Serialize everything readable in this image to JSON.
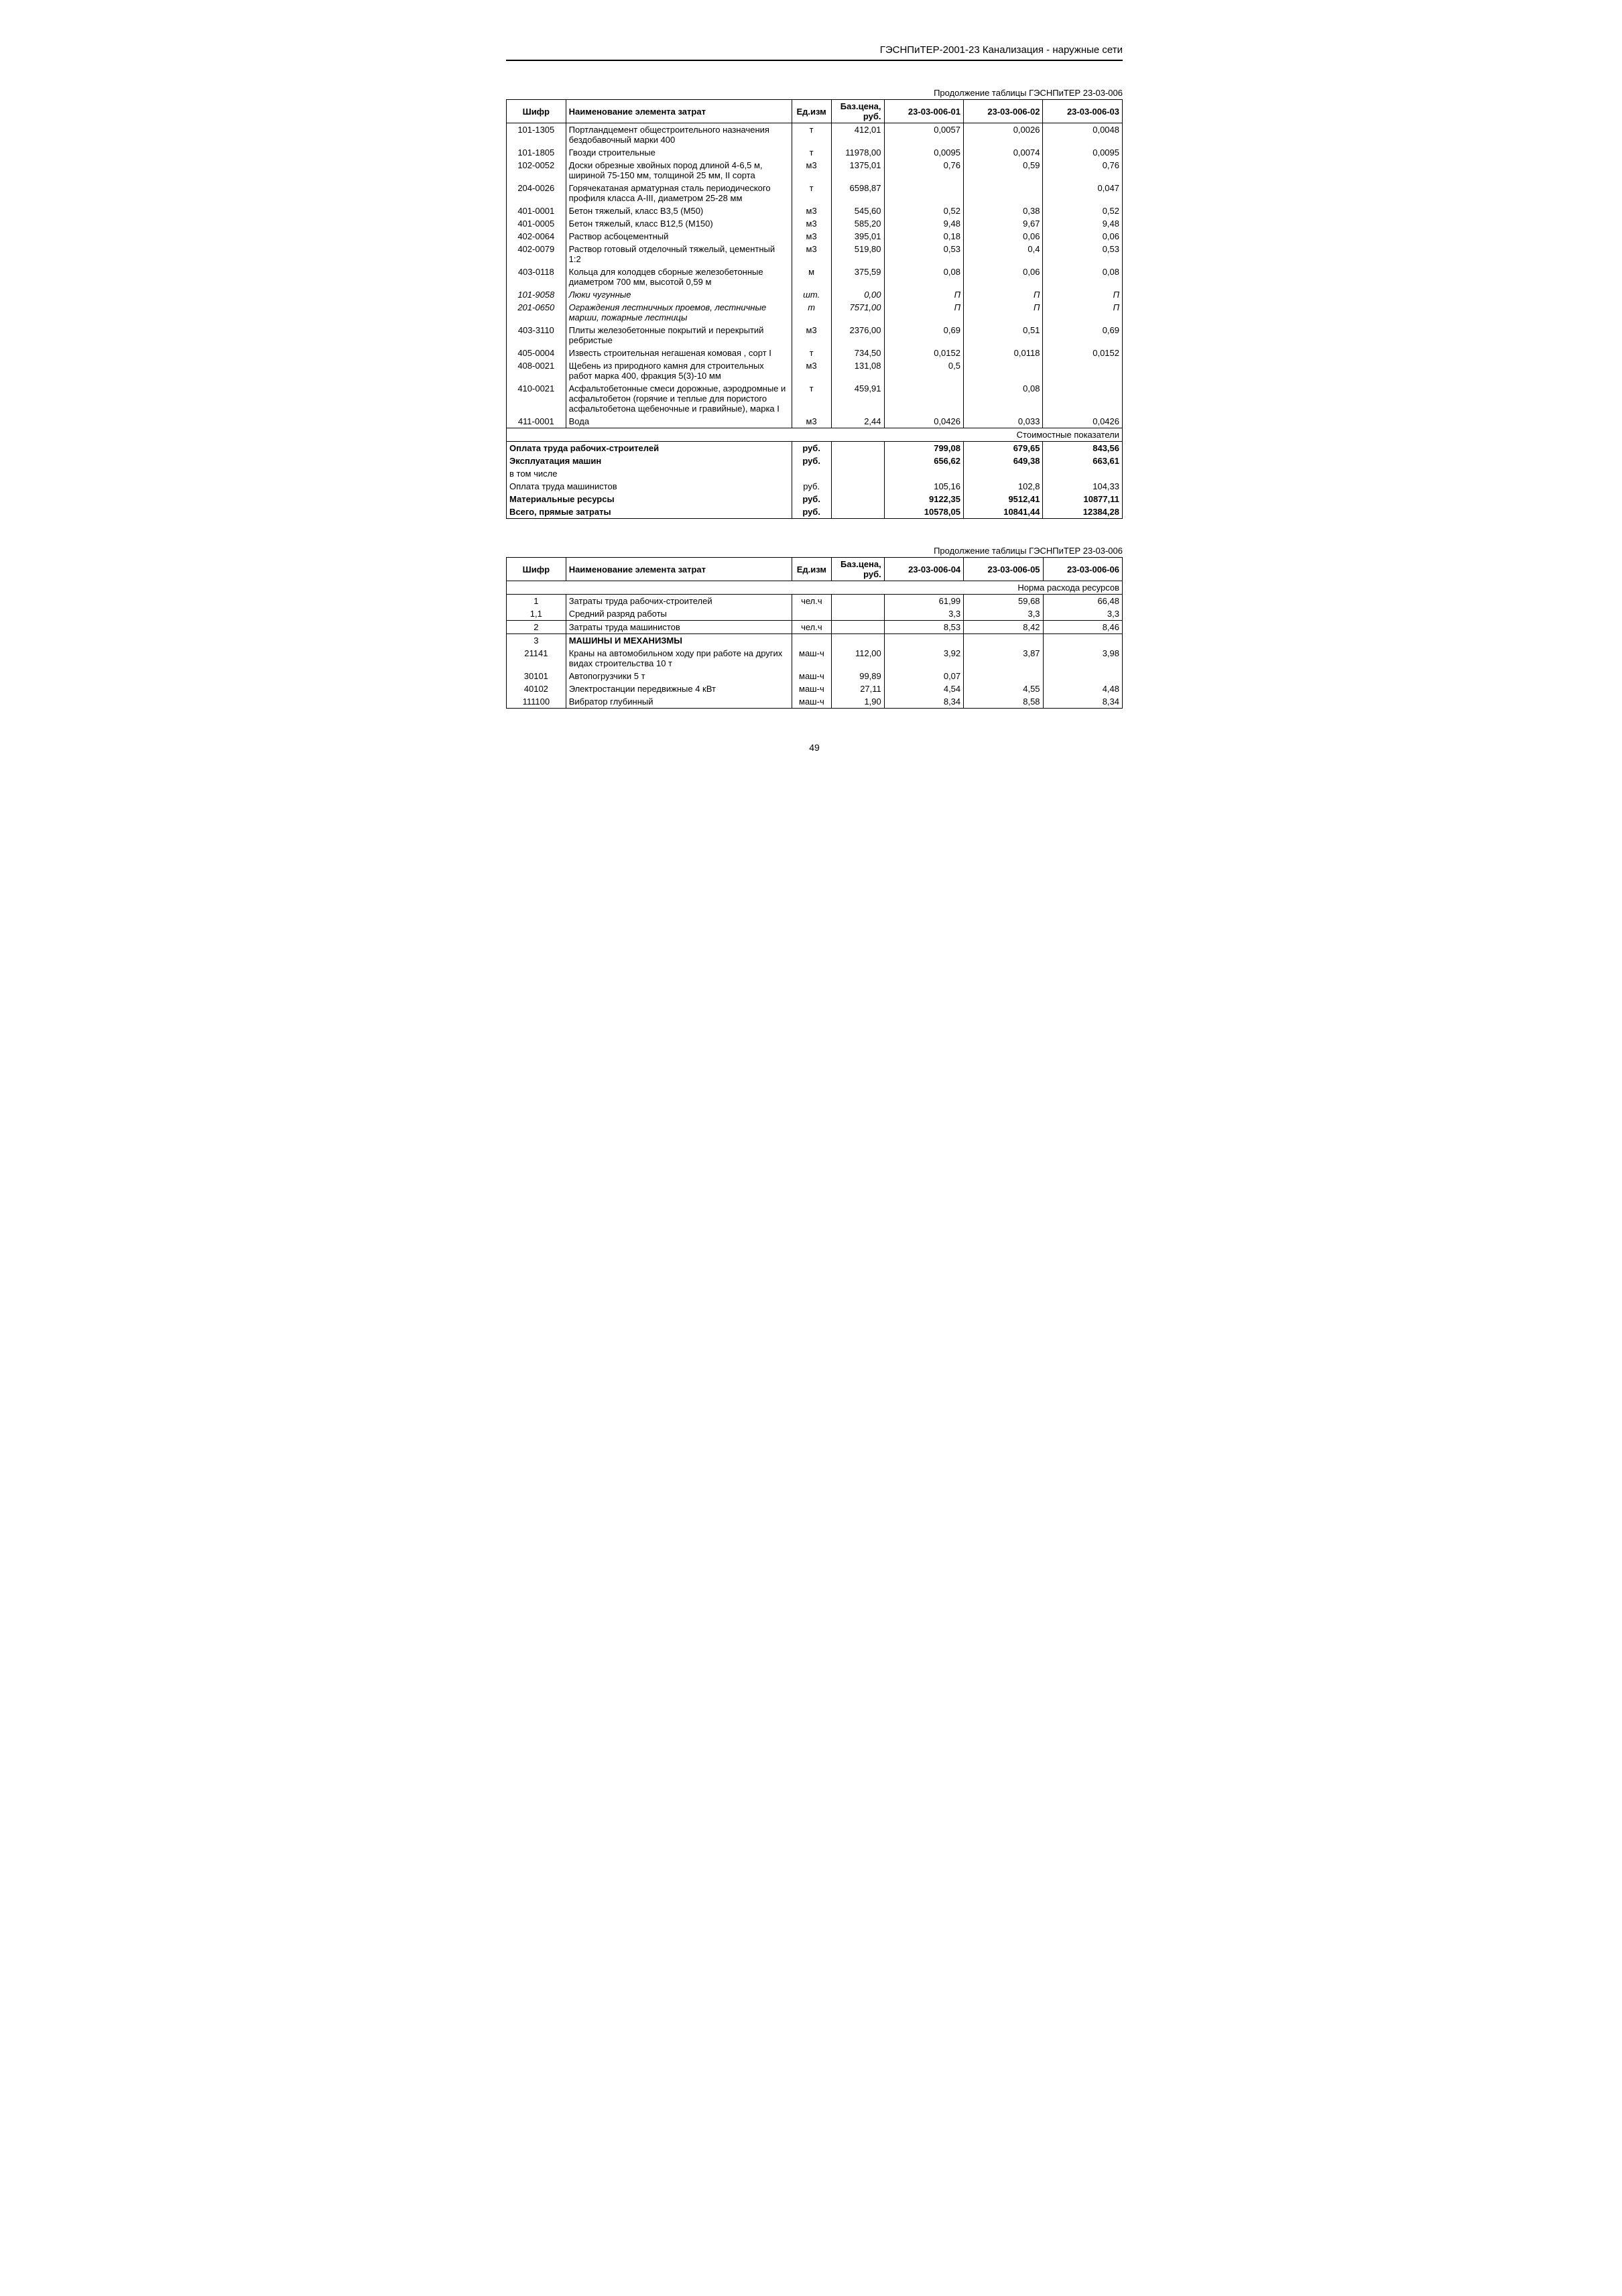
{
  "doc_header": "ГЭСНПиТЕР-2001-23 Канализация - наружные сети",
  "page_number": "49",
  "table1": {
    "caption": "Продолжение таблицы ГЭСНПиТЕР 23-03-006",
    "headers": {
      "code": "Шифр",
      "name": "Наименование элемента затрат",
      "unit": "Ед.изм",
      "price": "Баз.цена, руб.",
      "c1": "23-03-006-01",
      "c2": "23-03-006-02",
      "c3": "23-03-006-03"
    },
    "rows": [
      {
        "code": "101-1305",
        "name": "Портландцемент общестроительного назначения бездобавочный марки 400",
        "unit": "т",
        "price": "412,01",
        "v1": "0,0057",
        "v2": "0,0026",
        "v3": "0,0048"
      },
      {
        "code": "101-1805",
        "name": "Гвозди строительные",
        "unit": "т",
        "price": "11978,00",
        "v1": "0,0095",
        "v2": "0,0074",
        "v3": "0,0095"
      },
      {
        "code": "102-0052",
        "name": "Доски обрезные хвойных пород длиной 4-6,5 м, шириной 75-150 мм, толщиной 25 мм, II сорта",
        "unit": "м3",
        "price": "1375,01",
        "v1": "0,76",
        "v2": "0,59",
        "v3": "0,76"
      },
      {
        "code": "204-0026",
        "name": "Горячекатаная арматурная сталь периодического профиля класса А-III, диаметром 25-28 мм",
        "unit": "т",
        "price": "6598,87",
        "v1": "",
        "v2": "",
        "v3": "0,047"
      },
      {
        "code": "401-0001",
        "name": "Бетон тяжелый, класс В3,5 (М50)",
        "unit": "м3",
        "price": "545,60",
        "v1": "0,52",
        "v2": "0,38",
        "v3": "0,52"
      },
      {
        "code": "401-0005",
        "name": "Бетон тяжелый, класс В12,5 (М150)",
        "unit": "м3",
        "price": "585,20",
        "v1": "9,48",
        "v2": "9,67",
        "v3": "9,48"
      },
      {
        "code": "402-0064",
        "name": "Раствор асбоцементный",
        "unit": "м3",
        "price": "395,01",
        "v1": "0,18",
        "v2": "0,06",
        "v3": "0,06"
      },
      {
        "code": "402-0079",
        "name": "Раствор готовый отделочный тяжелый, цементный 1:2",
        "unit": "м3",
        "price": "519,80",
        "v1": "0,53",
        "v2": "0,4",
        "v3": "0,53"
      },
      {
        "code": "403-0118",
        "name": "Кольца для колодцев сборные железобетонные диаметром 700 мм, высотой 0,59 м",
        "unit": "м",
        "price": "375,59",
        "v1": "0,08",
        "v2": "0,06",
        "v3": "0,08"
      },
      {
        "code": "101-9058",
        "name": "Люки чугунные",
        "unit": "шт.",
        "price": "0,00",
        "v1": "П",
        "v2": "П",
        "v3": "П",
        "italic": true
      },
      {
        "code": "201-0650",
        "name": "Ограждения лестничных проемов, лестничные марши, пожарные лестницы",
        "unit": "т",
        "price": "7571,00",
        "v1": "П",
        "v2": "П",
        "v3": "П",
        "italic": true
      },
      {
        "code": "403-3110",
        "name": "Плиты железобетонные покрытий и перекрытий ребристые",
        "unit": "м3",
        "price": "2376,00",
        "v1": "0,69",
        "v2": "0,51",
        "v3": "0,69"
      },
      {
        "code": "405-0004",
        "name": "Известь строительная негашеная комовая , сорт I",
        "unit": "т",
        "price": "734,50",
        "v1": "0,0152",
        "v2": "0,0118",
        "v3": "0,0152"
      },
      {
        "code": "408-0021",
        "name": "Щебень из природного камня для строительных работ марка 400, фракция 5(3)-10 мм",
        "unit": "м3",
        "price": "131,08",
        "v1": "0,5",
        "v2": "",
        "v3": ""
      },
      {
        "code": "410-0021",
        "name": "Асфальтобетонные смеси дорожные, аэродромные и асфальтобетон (горячие и теплые для пористого асфальтобетона щебеночные и гравийные), марка I",
        "unit": "т",
        "price": "459,91",
        "v1": "",
        "v2": "0,08",
        "v3": ""
      },
      {
        "code": "411-0001",
        "name": "Вода",
        "unit": "м3",
        "price": "2,44",
        "v1": "0,0426",
        "v2": "0,033",
        "v3": "0,0426"
      }
    ],
    "cost_section_label": "Стоимостные показатели",
    "summary": [
      {
        "name": "Оплата труда рабочих-строителей",
        "unit": "руб.",
        "v1": "799,08",
        "v2": "679,65",
        "v3": "843,56",
        "bold": true
      },
      {
        "name": "Эксплуатация машин",
        "unit": "руб.",
        "v1": "656,62",
        "v2": "649,38",
        "v3": "663,61",
        "bold": true
      },
      {
        "name": "в том числе",
        "unit": "",
        "v1": "",
        "v2": "",
        "v3": ""
      },
      {
        "name": "Оплата труда машинистов",
        "unit": "руб.",
        "v1": "105,16",
        "v2": "102,8",
        "v3": "104,33"
      },
      {
        "name": "Материальные ресурсы",
        "unit": "руб.",
        "v1": "9122,35",
        "v2": "9512,41",
        "v3": "10877,11",
        "bold": true
      },
      {
        "name": "Всего, прямые затраты",
        "unit": "руб.",
        "v1": "10578,05",
        "v2": "10841,44",
        "v3": "12384,28",
        "bold": true
      }
    ]
  },
  "table2": {
    "caption": "Продолжение таблицы ГЭСНПиТЕР 23-03-006",
    "headers": {
      "code": "Шифр",
      "name": "Наименование элемента затрат",
      "unit": "Ед.изм",
      "price": "Баз.цена, руб.",
      "c1": "23-03-006-04",
      "c2": "23-03-006-05",
      "c3": "23-03-006-06"
    },
    "norm_label": "Норма расхода ресурсов",
    "rows": [
      {
        "code": "1",
        "name": "Затраты труда рабочих-строителей",
        "unit": "чел.ч",
        "price": "",
        "v1": "61,99",
        "v2": "59,68",
        "v3": "66,48",
        "top": true
      },
      {
        "code": "1,1",
        "name": "Средний разряд работы",
        "unit": "",
        "price": "",
        "v1": "3,3",
        "v2": "3,3",
        "v3": "3,3",
        "bottom": true
      },
      {
        "code": "2",
        "name": "Затраты труда машинистов",
        "unit": "чел.ч",
        "price": "",
        "v1": "8,53",
        "v2": "8,42",
        "v3": "8,46",
        "top": true,
        "bottom": true
      },
      {
        "code": "3",
        "name": "МАШИНЫ И МЕХАНИЗМЫ",
        "unit": "",
        "price": "",
        "v1": "",
        "v2": "",
        "v3": "",
        "bold": true,
        "top": true
      },
      {
        "code": "21141",
        "name": "Краны на автомобильном ходу при работе на других видах строительства 10 т",
        "unit": "маш-ч",
        "price": "112,00",
        "v1": "3,92",
        "v2": "3,87",
        "v3": "3,98"
      },
      {
        "code": "30101",
        "name": "Автопогрузчики 5 т",
        "unit": "маш-ч",
        "price": "99,89",
        "v1": "0,07",
        "v2": "",
        "v3": ""
      },
      {
        "code": "40102",
        "name": "Электростанции передвижные 4 кВт",
        "unit": "маш-ч",
        "price": "27,11",
        "v1": "4,54",
        "v2": "4,55",
        "v3": "4,48"
      },
      {
        "code": "111100",
        "name": "Вибратор глубинный",
        "unit": "маш-ч",
        "price": "1,90",
        "v1": "8,34",
        "v2": "8,58",
        "v3": "8,34",
        "bottom": true
      }
    ]
  }
}
